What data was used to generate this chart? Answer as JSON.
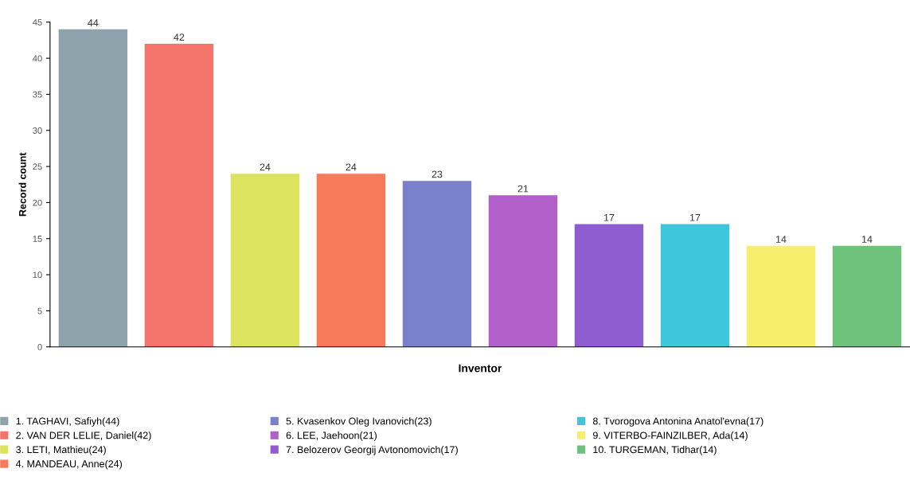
{
  "chart_data": {
    "type": "bar",
    "xlabel": "Inventor",
    "ylabel": "Record count",
    "categories": [
      null,
      null,
      null,
      null,
      null,
      null,
      null,
      null,
      null,
      null
    ],
    "series": [
      {
        "name": "1. TAGHAVI, Safiyh(44)",
        "color": "#8fa3ad",
        "values": [
          44,
          null,
          null,
          null,
          null,
          null,
          null,
          null,
          null,
          null
        ]
      },
      {
        "name": "2. VAN DER LELIE, Daniel(42)",
        "color": "#f4736a",
        "values": [
          null,
          42,
          null,
          null,
          null,
          null,
          null,
          null,
          null,
          null
        ]
      },
      {
        "name": "3. LETI, Mathieu(24)",
        "color": "#dbe35f",
        "values": [
          null,
          null,
          24,
          null,
          null,
          null,
          null,
          null,
          null,
          null
        ]
      },
      {
        "name": "4. MANDEAU, Anne(24)",
        "color": "#f77b5a",
        "values": [
          null,
          null,
          null,
          24,
          null,
          null,
          null,
          null,
          null,
          null
        ]
      },
      {
        "name": "5. Kvasenkov Oleg Ivanovich(23)",
        "color": "#7a80cc",
        "values": [
          null,
          null,
          null,
          null,
          23,
          null,
          null,
          null,
          null,
          null
        ]
      },
      {
        "name": "6. LEE, Jaehoon(21)",
        "color": "#b25fc9",
        "values": [
          null,
          null,
          null,
          null,
          null,
          21,
          null,
          null,
          null,
          null
        ]
      },
      {
        "name": "7. Belozerov Georgij Avtonomovich(17)",
        "color": "#8f5ccf",
        "values": [
          null,
          null,
          null,
          null,
          null,
          null,
          17,
          null,
          null,
          null
        ]
      },
      {
        "name": "8. Tvorogova Antonina Anatol'evna(17)",
        "color": "#3ec6dc",
        "values": [
          null,
          null,
          null,
          null,
          null,
          null,
          null,
          17,
          null,
          null
        ]
      },
      {
        "name": "9. VITERBO-FAINZILBER, Ada(14)",
        "color": "#f6ee6c",
        "values": [
          null,
          null,
          null,
          null,
          null,
          null,
          null,
          null,
          14,
          null
        ]
      },
      {
        "name": "10. TURGEMAN, Tidhar(14)",
        "color": "#6fc27c",
        "values": [
          null,
          null,
          null,
          null,
          null,
          null,
          null,
          null,
          null,
          14
        ]
      }
    ],
    "ylim": [
      0,
      45
    ],
    "yticks": [
      0,
      5,
      10,
      15,
      20,
      25,
      30,
      35,
      40,
      45
    ],
    "data_labels": true,
    "grid": false,
    "legend": "bottom"
  }
}
